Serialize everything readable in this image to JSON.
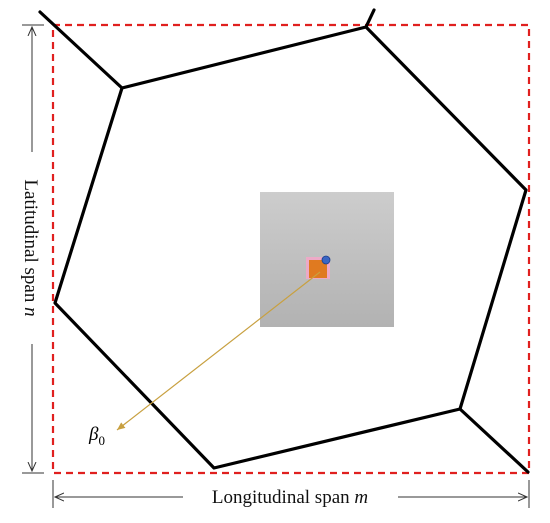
{
  "labels": {
    "latitudinal": "Latitudinal span ",
    "latitudinal_var": "n",
    "longitudinal": "Longitudinal span ",
    "longitudinal_var": "m",
    "beta_symbol": "β",
    "beta_sub": "0"
  },
  "colors": {
    "boundary": "#e0201f",
    "edges": "#000000",
    "gray_square_top": "#c8c8c8",
    "gray_square_bottom": "#b4b4b4",
    "orange_node": "#e07a20",
    "pink_glow": "#f4a6c8",
    "blue_dot": "#3a66c4",
    "arrow": "#c8a040",
    "dim_lines": "#333333"
  }
}
